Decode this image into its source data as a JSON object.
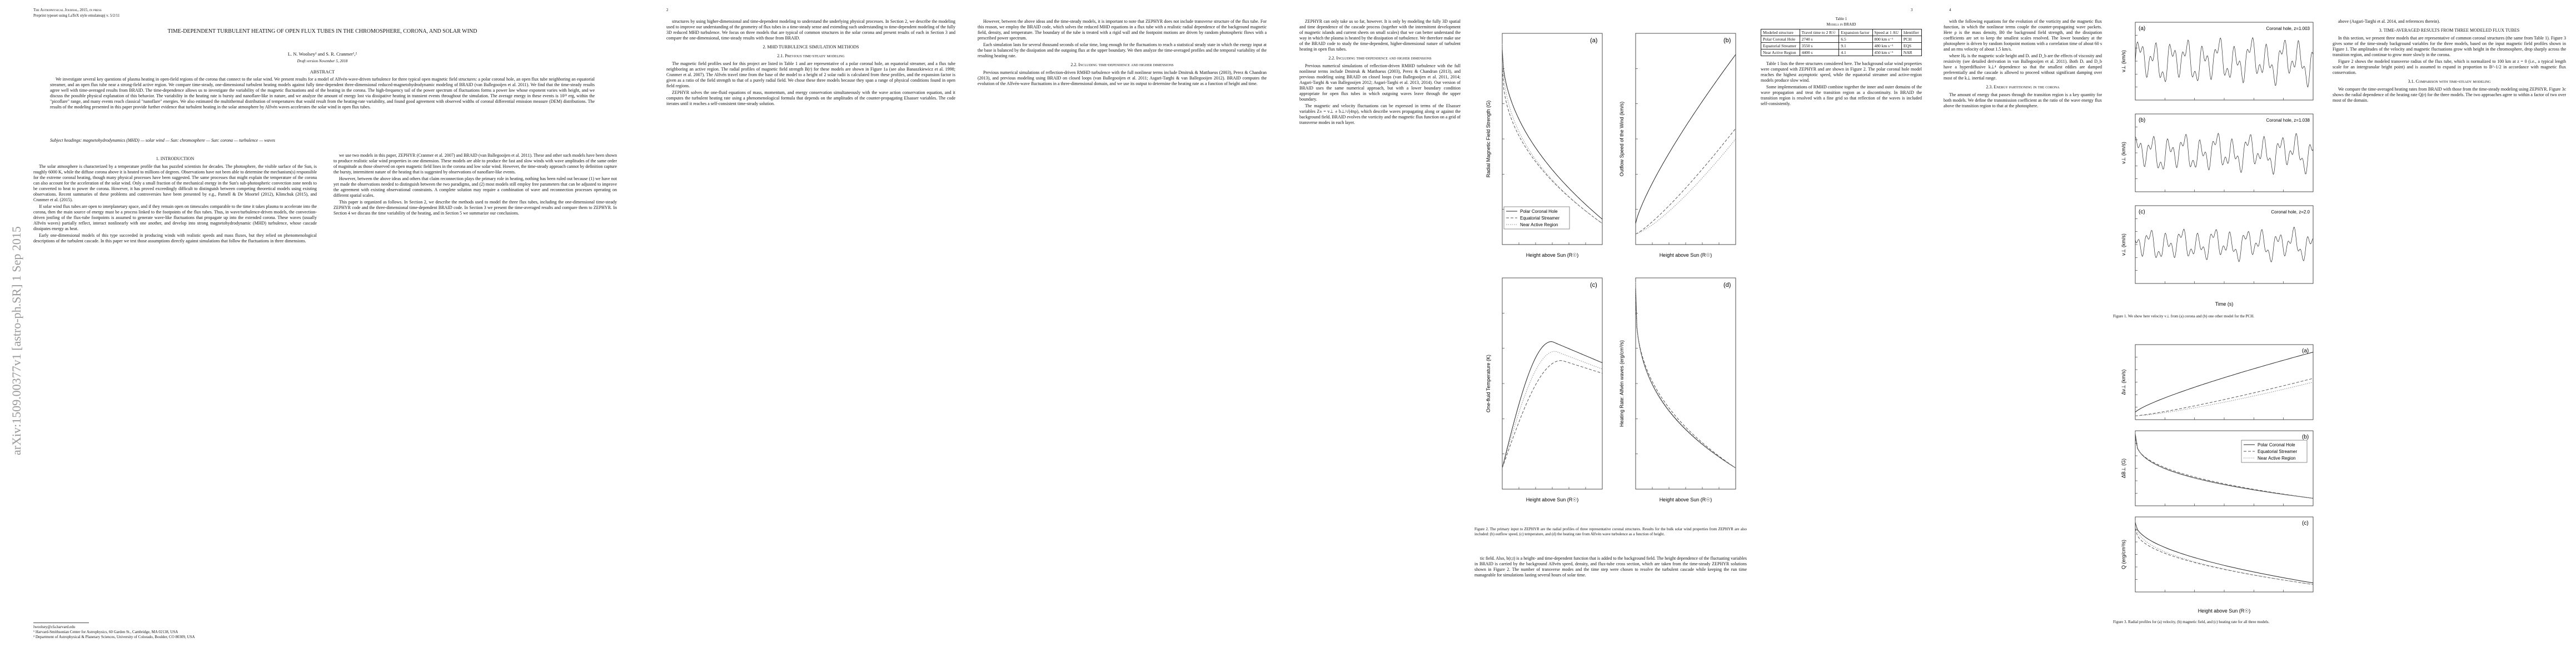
{
  "page1": {
    "journal": "The Astrophysical Journal, 2015, in press",
    "preprint": "Preprint typeset using LaTeX style emulateapj v. 5/2/11",
    "title": "TIME-DEPENDENT TURBULENT HEATING OF OPEN FLUX TUBES IN THE CHROMOSPHERE, CORONA, AND SOLAR WIND",
    "authors": "L. N. Woolsey¹ and S. R. Cranmer¹,²",
    "draft": "Draft version November 5, 2018",
    "abstract_heading": "ABSTRACT",
    "abstract": "We investigate several key questions of plasma heating in open-field regions of the corona that connect to the solar wind. We present results for a model of Alfvén-wave-driven turbulence for three typical open magnetic field structures: a polar coronal hole, an open flux tube neighboring an equatorial streamer, and an open flux tube near a strong-field active region. We compare time-steady, one-dimensional turbulent heating models against fully time-dependent three-dimensional reduced-magnetohydrodynamic modeling of BRAID (van Ballegooijen et al. 2011). We find that the time-steady results agree well with time-averaged results from BRAID. The time-dependence allows us to investigate the variability of the magnetic fluctuations and of the heating in the corona. The high-frequency tail of the power spectrum of fluctuations forms a power law whose exponent varies with height, and we discuss the possible physical explanation of this behavior. The variability in the heating rate is bursty and nanoflare-like in nature, and we analyze the amount of energy lost via dissipative heating in transient events throughout the simulation. The average energy in these events is 10²³ erg, within the \"picoflare\" range, and many events reach classical \"nanoflare\" energies. We also estimated the multithermal distribution of temperatures that would result from the heating-rate variability, and found good agreement with observed widths of coronal differential emission measure (DEM) distributions. The results of the modeling presented in this paper provide further evidence that turbulent heating in the solar atmosphere by Alfvén waves accelerates the solar wind in open flux tubes.",
    "keywords": "Subject headings: magnetohydrodynamics (MHD) — solar wind — Sun: chromosphere — Sun: corona — turbulence — waves",
    "arxiv": "arXiv:1509.00377v1  [astro-ph.SR]  1 Sep 2015",
    "columns": [
      [
        {
          "heading": "1. INTRODUCTION"
        },
        {
          "text": "The solar atmosphere is characterized by a temperature profile that has puzzled scientists for decades. The photosphere, the visible surface of the Sun, is roughly 6000 K, while the diffuse corona above it is heated to millions of degrees. Observations have not been able to determine the mechanism(s) responsible for the extreme coronal heating, though many physical processes have been suggested. The same processes that might explain the temperature of the corona can also account for the acceleration of the solar wind. Only a small fraction of the mechanical energy in the Sun's sub-photospheric convection zone needs to be converted to heat to power the corona. However, it has proved exceedingly difficult to distinguish between competing theoretical models using existing observations. Recent summaries of these problems and controversies have been presented by e.g., Parnell & De Moortel (2012), Klimchuk (2015), and Cranmer et al. (2015)."
        },
        {
          "text": "If solar wind flux tubes are open to interplanetary space, and if they remain open on timescales comparable to the time it takes plasma to accelerate into the corona, then the main source of energy must be a process linked to the footpoints of the flux tubes. Thus, in wave/turbulence-driven models, the convection-driven jostling of the flux-tube footpoints is assumed to generate wave-like fluctuations that propagate up into the extended corona. These waves (usually Alfvén waves) partially reflect, interact nonlinearly with one another, and develop into strong magnetohydrodynamic (MHD) turbulence, whose cascade dissipates energy as heat."
        },
        {
          "text": "Early one-dimensional models of this type succeeded in producing winds with realistic speeds and mass fluxes, but they relied on phenomenological descriptions of the turbulent cascade. In this paper we test those assumptions directly against simulations that follow the fluctuations in three dimensions."
        }
      ],
      [
        {
          "text": "we use two models in this paper, ZEPHYR (Cranmer et al. 2007) and BRAID (van Ballegooijen et al. 2011). These and other such models have been shown to produce realistic solar wind properties in one dimension. These models are able to produce the fast and slow winds with wave amplitudes of the same order of magnitude as those observed on open magnetic field lines in the corona and low solar wind. However, the time-steady approach cannot by definition capture the bursty, intermittent nature of the heating that is suggested by observations of nanoflare-like events."
        },
        {
          "text": "However, between the above ideas and others that claim reconnection plays the primary role in heating, nothing has been ruled out because (1) we have not yet made the observations needed to distinguish between the two paradigms, and (2) most models still employ free parameters that can be adjusted to improve the agreement with existing observational constraints. A complete solution may require a combination of wave and reconnection processes operating on different spatial scales."
        },
        {
          "text": "This paper is organized as follows. In Section 2, we describe the methods used to model the three flux tubes, including the one-dimensional time-steady ZEPHYR code and the three-dimensional time-dependent BRAID code. In Section 3 we present the time-averaged results and compare them to ZEPHYR. In Section 4 we discuss the time variability of the heating, and in Section 5 we summarize our conclusions."
        }
      ]
    ],
    "footnotes": [
      "lwoolsey@cfa.harvard.edu",
      "¹ Harvard-Smithsonian Center for Astrophysics, 60 Garden St., Cambridge, MA 02138, USA",
      "² Department of Astrophysical & Planetary Sciences, University of Colorado, Boulder, CO 80309, USA"
    ]
  },
  "page2": {
    "number": "2",
    "columns": [
      [
        {
          "text": "structures by using higher-dimensional and time-dependent modeling to understand the underlying physical processes. In Section 2, we describe the modeling used to improve our understanding of the geometry of flux tubes in a time-steady sense and extending such understanding to time-dependent modeling of the fully 3D reduced MHD turbulence. We focus on three models that are typical of common structures in the solar corona and present results of each in Section 3 and compare the one-dimensional, time-steady results with those from BRAID."
        },
        {
          "heading": "2. MHD TURBULENCE SIMULATION METHODS"
        },
        {
          "heading": "2.1. Previous time-steady modeling"
        },
        {
          "text": "The magnetic field profiles used for this project are listed in Table 1 and are representative of a polar coronal hole, an equatorial streamer, and a flux tube neighboring an active region. The radial profiles of magnetic field strength B(r) for these models are shown in Figure 1a (see also Banaszkiewicz et al. 1998; Cranmer et al. 2007). The Alfvén travel time from the base of the model to a height of 2 solar radii is calculated from these profiles, and the expansion factor is given as a ratio of the field strength to that of a purely radial field. We chose these three models because they span a range of physical conditions found in open field regions."
        },
        {
          "text": "ZEPHYR solves the one-fluid equations of mass, momentum, and energy conservation simultaneously with the wave action conservation equation, and it computes the turbulent heating rate using a phenomenological formula that depends on the amplitudes of the counter-propagating Elsasser variables. The code iterates until it reaches a self-consistent time-steady solution."
        }
      ],
      [
        {
          "text": "However, between the above ideas and the time-steady models, it is important to note that ZEPHYR does not include transverse structure of the flux tube. For this reason, we employ the BRAID code, which solves the reduced MHD equations in a flux tube with a realistic radial dependence of the background magnetic field, density, and temperature. The boundary of the tube is treated with a rigid wall and the footpoint motions are driven by random photospheric flows with a prescribed power spectrum."
        },
        {
          "text": "Each simulation lasts for several thousand seconds of solar time, long enough for the fluctuations to reach a statistical steady state in which the energy input at the base is balanced by the dissipation and the outgoing flux at the upper boundary. We then analyze the time-averaged profiles and the temporal variability of the resulting heating rate."
        },
        {
          "heading": "2.2. Including time-dependence and higher dimensions"
        },
        {
          "text": "Previous numerical simulations of reflection-driven RMHD turbulence with the full nonlinear terms include Dmitruk & Matthaeus (2003), Perez & Chandran (2013), and previous modeling using BRAID on closed loops (van Ballegooijen et al. 2011; Asgari-Targhi & van Ballegooijen 2012). BRAID computes the evolution of the Alfvén-wave fluctuations in a three-dimensional domain, and we use its output to determine the heating rate as a function of height and time."
        }
      ]
    ]
  },
  "page3": {
    "number": "3",
    "table": {
      "caption": "Table 1",
      "subcaption": "Models in BRAID",
      "header": [
        "Modeled structure",
        "Travel time to 2 R☉",
        "Expansion factor",
        "Speed at 1 AU",
        "Identifier"
      ],
      "rows": [
        [
          "Polar Coronal Hole",
          "2740 s",
          "6.5",
          "800 km s⁻¹",
          "PCH"
        ],
        [
          "Equatorial Streamer",
          "3550 s",
          "9.1",
          "480 km s⁻¹",
          "EQS"
        ],
        [
          "Near Active Region",
          "4400 s",
          "4.1",
          "450 km s⁻¹",
          "NAR"
        ]
      ]
    },
    "figure": {
      "panels": [
        {
          "label": "(a)",
          "ylabel": "Radial Magnetic Field Strength (G)"
        },
        {
          "label": "(b)",
          "ylabel": "Outflow Speed of the Wind (km/s)"
        },
        {
          "label": "(c)",
          "ylabel": "One-fluid Temperature (K)"
        },
        {
          "label": "(d)",
          "ylabel": "Heating Rate: Alfvén waves (erg/cm³/s)"
        }
      ],
      "xlabel": "Height above Sun (R☉)",
      "legend": [
        "Polar Coronal Hole",
        "Equatorial Streamer",
        "Near Active Region"
      ],
      "caption": "Figure 2. The primary input to ZEPHYR are the radial profiles of three representative coronal structures. Results for the bulk solar wind properties from ZEPHYR are also included: (b) outflow speed, (c) temperature, and (d) the heating rate from Alfvén wave turbulence as a function of height."
    },
    "columns": [
      [
        {
          "text": "ZEPHYR can only take us so far, however. It is only by modeling the fully 3D spatial and time dependence of the cascade process (together with the intermittent development of magnetic islands and current sheets on small scales) that we can better understand the way in which the plasma is heated by the dissipation of turbulence. We therefore make use of the BRAID code to study the time-dependent, higher-dimensional nature of turbulent heating in open flux tubes."
        },
        {
          "heading": "2.2. Including time-dependence and higher dimensions"
        },
        {
          "text": "Previous numerical simulations of reflection-driven RMHD turbulence with the full nonlinear terms include Dmitruk & Matthaeus (2003), Perez & Chandran (2013), and previous modeling using BRAID on closed loops (van Ballegooijen et al. 2011, 2014; Asgari-Targhi & van Ballegooijen 2012; Asgari-Targhi et al. 2013, 2014). Our version of BRAID uses the same numerical approach, but with a lower boundary condition appropriate for open flux tubes in which outgoing waves leave through the upper boundary."
        },
        {
          "text": "The magnetic and velocity fluctuations can be expressed in terms of the Elsasser variables Z± = v⊥ ± b⊥/√(4πρ), which describe waves propagating along or against the background field. BRAID evolves the vorticity and the magnetic flux function on a grid of transverse modes in each layer."
        }
      ],
      [
        {
          "text": "Table 1 lists the three structures considered here. The background solar wind properties were computed with ZEPHYR and are shown in Figure 2. The polar coronal hole model reaches the highest asymptotic speed, while the equatorial streamer and active-region models produce slow wind."
        },
        {
          "text": "Some implementations of RMHD combine together the inner and outer domains of the wave propagation and treat the transition region as a discontinuity. In BRAID the transition region is resolved with a fine grid so that reflection of the waves is included self-consistently."
        }
      ],
      [
        {
          "text": "tic field. Also, b(r,t) is a height- and time-dependent function that is added to the background field. The height dependence of the fluctuating variables in BRAID is carried by the background Alfvén speed, density, and flux-tube cross section, which are taken from the time-steady ZEPHYR solutions shown in Figure 2. The number of transverse modes and the time step were chosen to resolve the turbulent cascade while keeping the run time manageable for simulations lasting several hours of solar time."
        }
      ]
    ]
  },
  "page4": {
    "number": "4",
    "figure1": {
      "panels": [
        {
          "label": "(a)",
          "title": "Coronal hole, z=1.003"
        },
        {
          "label": "(b)",
          "title": "Coronal hole, z=1.038"
        },
        {
          "label": "(c)",
          "title": "Coronal hole, z=2.0"
        }
      ],
      "xlabel": "Time (s)",
      "ylabel": "v⊥ (km/s)",
      "caption": "Figure 1. We show here velocity v⊥ from (a) corona and (b) one other model for the PCH."
    },
    "figure3": {
      "panels": [
        {
          "label": "(a)",
          "ylabel": "Δv⊥ (km/s)"
        },
        {
          "label": "(b)",
          "ylabel": "ΔB⊥ (G)"
        },
        {
          "label": "(c)",
          "ylabel": "Q (erg/cm³/s)"
        }
      ],
      "legend": [
        "Polar Coronal Hole",
        "Equatorial Streamer",
        "Near Active Region"
      ],
      "xlabel": "Height above Sun (R☉)",
      "caption": "Figure 3. Radial profiles for (a) velocity, (b) magnetic field, and (c) heating rate for all three models."
    },
    "columns": [
      [
        {
          "text": "with the following equations for the evolution of the vorticity and the magnetic flux function, in which the nonlinear terms couple the counter-propagating wave packets. Here ρ is the mass density, B0 the background field strength, and the dissipation coefficients are set to keep the smallest scales resolved. The lower boundary at the photosphere is driven by random footpoint motions with a correlation time of about 60 s and an rms velocity of about 1.5 km/s."
        },
        {
          "text": "where Hₚ is the magnetic scale height and Dᵥ and D_b are the effects of viscosity and resistivity (see detailed derivation in van Ballegooijen et al. 2011). Both Dᵥ and D_b have a hyperdiffusive k⊥⁴ dependence so that the smallest eddies are damped preferentially and the cascade is allowed to proceed without significant damping over most of the k⊥ inertial range."
        },
        {
          "heading": "2.3. Energy partitioning in the corona"
        },
        {
          "text": "The amount of energy that passes through the transition region is a key quantity for both models. We define the transmission coefficient as the ratio of the wave energy flux above the transition region to that at the photosphere."
        }
      ],
      [
        {
          "text": "above (Asgari-Targhi et al. 2014, and references therein)."
        },
        {
          "heading": "3. TIME-AVERAGED RESULTS FROM THREE MODELED FLUX TUBES"
        },
        {
          "text": "In this section, we present three models that are representative of common coronal structures (the same from Table 1). Figure 3 gives some of the time-steady background variables for the three models, based on the input magnetic field profiles shown in Figure 1. The amplitudes of the velocity and magnetic fluctuations grow with height in the chromosphere, drop sharply across the transition region, and continue to grow more slowly in the corona."
        },
        {
          "text": "Figure 2 shows the modeled transverse radius of the flux tube, which is normalized to 100 km at z = 0 (i.e., a typical length scale for an intergranular bright point) and is assumed to expand in proportion to B^-1/2 in accordance with magnetic flux conservation."
        },
        {
          "heading": "3.1. Comparison with time-steady modeling"
        },
        {
          "text": "We compare the time-averaged heating rates from BRAID with those from the time-steady modeling using ZEPHYR. Figure 3c shows the radial dependence of the heating rate Q(r) for the three models. The two approaches agree to within a factor of two over most of the domain."
        }
      ]
    ]
  }
}
